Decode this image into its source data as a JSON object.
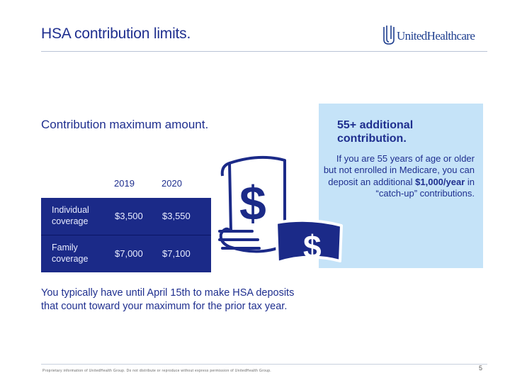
{
  "header": {
    "title": "HSA contribution limits.",
    "logo_text": "UnitedHealthcare"
  },
  "main": {
    "subtitle": "Contribution maximum amount.",
    "table": {
      "columns": [
        "2019",
        "2020"
      ],
      "rows": [
        {
          "label": "Individual coverage",
          "values": [
            "$3,500",
            "$3,550"
          ]
        },
        {
          "label": "Family coverage",
          "values": [
            "$7,000",
            "$7,100"
          ]
        }
      ]
    },
    "note": "You typically have until April 15th to make HSA deposits that count toward your maximum for the prior tax year."
  },
  "sidebar": {
    "heading": "55+ additional contribution.",
    "body_pre": "If you are 55 years of age or older but not enrolled in Medicare, you can deposit an additional ",
    "body_bold": "$1,000/year",
    "body_post": " in “catch-up” contributions."
  },
  "graphic": {
    "symbol": "$",
    "icon": "dollar-bills-icon"
  },
  "footer": {
    "text": "Proprietary information of UnitedHealth Group. Do not distribute or reproduce without express permission of UnitedHealth Group.",
    "page_number": "5"
  },
  "colors": {
    "brand_navy": "#1b2a88",
    "text_navy": "#1f2f8f",
    "panel_blue": "#c5e3f8"
  }
}
